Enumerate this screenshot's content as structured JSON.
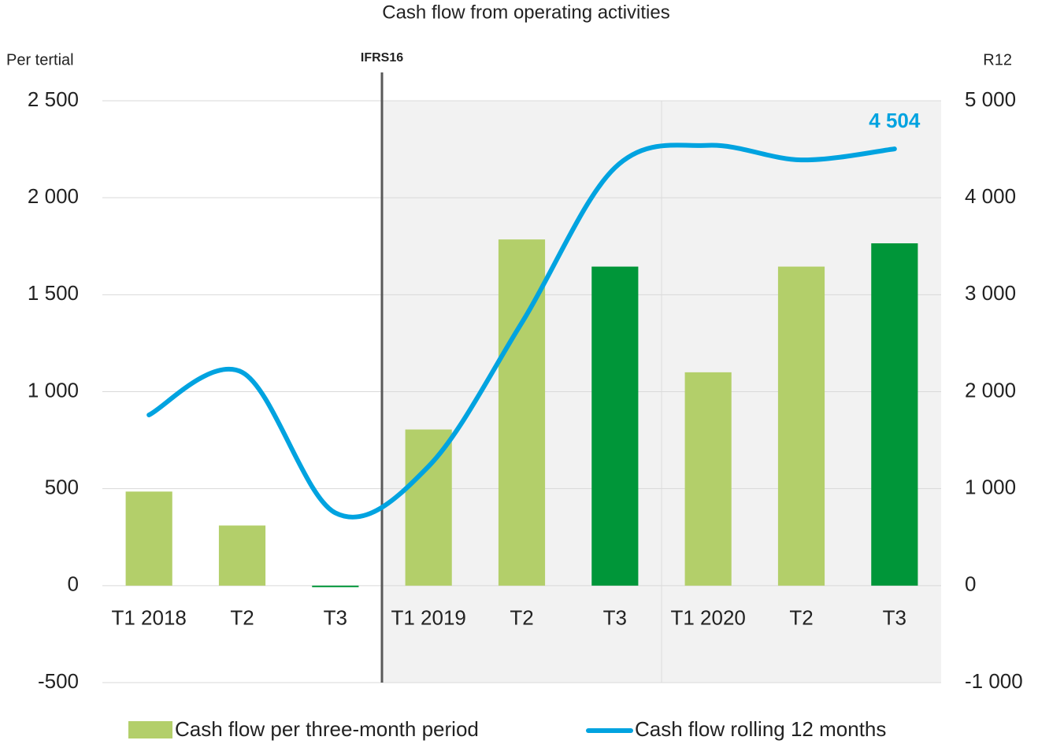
{
  "chart_data": {
    "type": "bar+line",
    "title": "Cash flow from operating activities",
    "y_label": "Per tertial",
    "y2_label": "R12",
    "annotation": "IFRS16",
    "categories": [
      "T1 2018",
      "T2",
      "T3",
      "T1 2019",
      "T2",
      "T3",
      "T1 2020",
      "T2",
      "T3"
    ],
    "series": [
      {
        "name": "Cash flow per three-month period",
        "type": "bar",
        "color": "#b3cf6a",
        "colors": [
          "#b3cf6a",
          "#b3cf6a",
          "#009639",
          "#b3cf6a",
          "#b3cf6a",
          "#009639",
          "#b3cf6a",
          "#b3cf6a",
          "#009639"
        ],
        "values": [
          485,
          310,
          -8,
          805,
          1785,
          1645,
          1100,
          1645,
          1765
        ]
      },
      {
        "name": "Cash flow rolling 12 months",
        "type": "line",
        "axis": "y2",
        "color": "#00a3e0",
        "values": [
          1760,
          2200,
          750,
          1230,
          2710,
          4310,
          4540,
          4390,
          4504
        ],
        "value_labels": [
          null,
          null,
          null,
          null,
          null,
          null,
          null,
          null,
          "4 504"
        ]
      }
    ],
    "ylim": [
      -500,
      2500
    ],
    "yticks": [
      -500,
      0,
      500,
      {
        "value": 1000,
        "label": "1 000"
      },
      {
        "value": 1500,
        "label": "1 500"
      },
      {
        "value": 2000,
        "label": "2 000"
      },
      {
        "value": 2500,
        "label": "2 500"
      }
    ],
    "y2lim": [
      -1000,
      5000
    ],
    "y2ticks": [
      {
        "value": -1000,
        "label": "-1 000"
      },
      0,
      {
        "value": 1000,
        "label": "1 000"
      },
      {
        "value": 2000,
        "label": "2 000"
      },
      {
        "value": 3000,
        "label": "3 000"
      },
      {
        "value": 4000,
        "label": "4 000"
      },
      {
        "value": 5000,
        "label": "5 000"
      }
    ],
    "grid": true
  }
}
